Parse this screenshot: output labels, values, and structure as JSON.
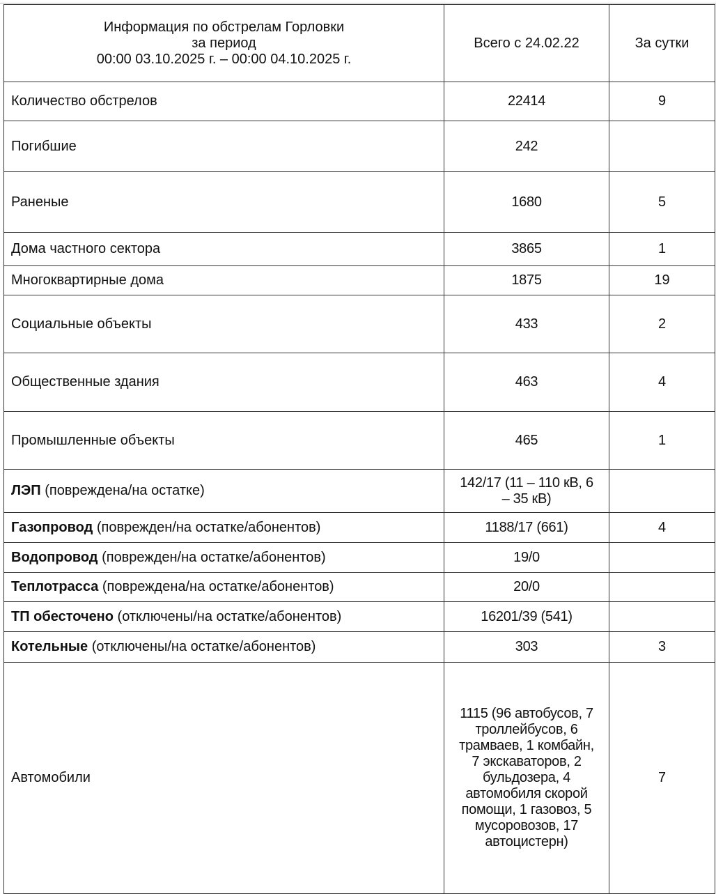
{
  "header": {
    "title_line1": "Информация по обстрелам Горловки",
    "title_line2": "за период",
    "title_line3": "00:00 03.10.2025 г. – 00:00 04.10.2025 г.",
    "col_total": "Всего с 24.02.22",
    "col_day": "За сутки"
  },
  "rows": [
    {
      "label": "Количество обстрелов",
      "note": "",
      "total": "22414",
      "day": "9"
    },
    {
      "label": "Погибшие",
      "note": "",
      "total": "242",
      "day": ""
    },
    {
      "label": "Раненые",
      "note": "",
      "total": "1680",
      "day": "5"
    },
    {
      "label": "Дома частного сектора",
      "note": "",
      "total": "3865",
      "day": "1"
    },
    {
      "label": "Многоквартирные дома",
      "note": "",
      "total": "1875",
      "day": "19"
    },
    {
      "label": "Социальные объекты",
      "note": "",
      "total": "433",
      "day": "2"
    },
    {
      "label": "Общественные здания",
      "note": "",
      "total": "463",
      "day": "4"
    },
    {
      "label": "Промышленные объекты",
      "note": "",
      "total": "465",
      "day": "1"
    },
    {
      "label": "ЛЭП",
      "note": " (повреждена/на остатке)",
      "total": "142/17 (11 – 110 кВ, 6 – 35 кВ)",
      "day": ""
    },
    {
      "label": "Газопровод",
      "note": " (поврежден/на остатке/абонентов)",
      "total": "1188/17 (661)",
      "day": "4"
    },
    {
      "label": "Водопровод",
      "note": " (поврежден/на остатке/абонентов)",
      "total": "19/0",
      "day": ""
    },
    {
      "label": "Теплотрасса",
      "note": " (повреждена/на остатке/абонентов)",
      "total": "20/0",
      "day": ""
    },
    {
      "label": "ТП обесточено",
      "note": " (отключены/на остатке/абонентов)",
      "total": "16201/39 (541)",
      "day": ""
    },
    {
      "label": "Котельные",
      "note": " (отключены/на остатке/абонентов)",
      "total": "303",
      "day": "3"
    },
    {
      "label": "Автомобили",
      "note": "",
      "total": "1115 (96 автобусов, 7 троллейбусов, 6 трамваев, 1 комбайн, 7 экскаваторов, 2 бульдозера, 4 автомобиля скорой помощи, 1 газовоз, 5 мусоровозов, 17 автоцистерн)",
      "day": "7"
    }
  ]
}
